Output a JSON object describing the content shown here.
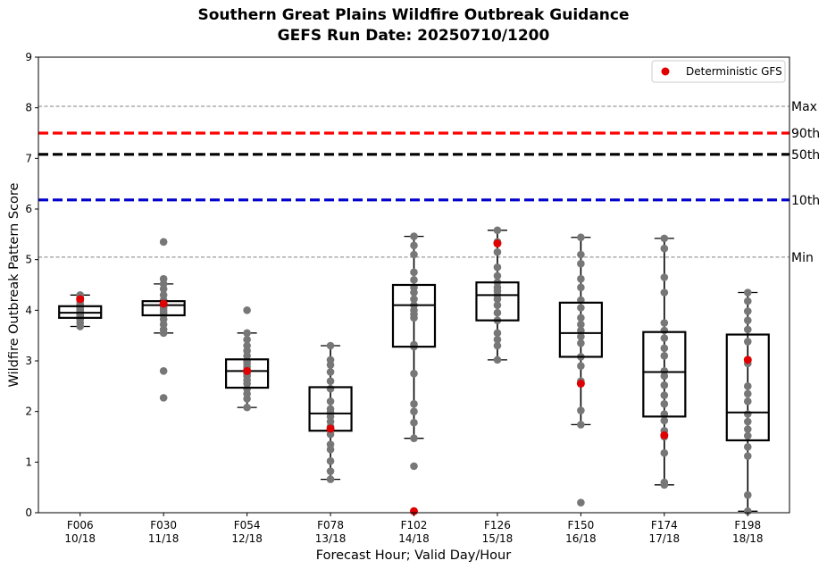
{
  "chart_data": {
    "type": "boxplot",
    "title": "Southern Great Plains Wildfire Outbreak Guidance",
    "subtitle": "GEFS Run Date: 20250710/1200",
    "xlabel": "Forecast Hour; Valid Day/Hour",
    "ylabel": "Wildfire Outbreak Pattern Score",
    "ylim": [
      0,
      9
    ],
    "yticks": [
      "0",
      "1",
      "2",
      "3",
      "4",
      "5",
      "6",
      "7",
      "8",
      "9"
    ],
    "grid": false,
    "legend": {
      "label": "Deterministic GFS",
      "position": "top-right",
      "color": "#e00000"
    },
    "colors": {
      "members": "#777777",
      "deterministic": "#e00000",
      "box": "#000000"
    },
    "reference_lines": [
      {
        "label": "Max",
        "value": 8.03,
        "color": "#808080",
        "style": "dashed-thin"
      },
      {
        "label": "90th",
        "value": 7.5,
        "color": "#ff0000",
        "style": "dashed-thick"
      },
      {
        "label": "50th",
        "value": 7.08,
        "color": "#000000",
        "style": "dashed-thick"
      },
      {
        "label": "10th",
        "value": 6.18,
        "color": "#0000cc",
        "style": "dashed-thick"
      },
      {
        "label": "Min",
        "value": 5.05,
        "color": "#808080",
        "style": "dashed-thin"
      }
    ],
    "categories": [
      {
        "label": "F006",
        "sublabel": "10/18",
        "q1": 3.85,
        "median": 3.95,
        "q3": 4.08,
        "whisker_low": 3.68,
        "whisker_high": 4.3,
        "deterministic": 4.22,
        "members": [
          3.68,
          3.75,
          3.82,
          3.88,
          3.9,
          3.92,
          3.95,
          3.97,
          4.0,
          4.02,
          4.05,
          4.08,
          4.12,
          4.18,
          4.22,
          4.26,
          4.3
        ]
      },
      {
        "label": "F030",
        "sublabel": "11/18",
        "q1": 3.9,
        "median": 4.1,
        "q3": 4.18,
        "whisker_low": 3.55,
        "whisker_high": 4.52,
        "deterministic": 4.13,
        "members": [
          2.27,
          2.8,
          3.55,
          3.62,
          3.72,
          3.82,
          3.9,
          3.95,
          4.0,
          4.05,
          4.1,
          4.15,
          4.2,
          4.3,
          4.42,
          4.52,
          4.62,
          5.35
        ]
      },
      {
        "label": "F054",
        "sublabel": "12/18",
        "q1": 2.47,
        "median": 2.8,
        "q3": 3.03,
        "whisker_low": 2.08,
        "whisker_high": 3.55,
        "deterministic": 2.8,
        "members": [
          2.08,
          2.25,
          2.35,
          2.45,
          2.55,
          2.62,
          2.7,
          2.75,
          2.82,
          2.88,
          2.95,
          3.0,
          3.1,
          3.2,
          3.3,
          3.42,
          3.55,
          4.0
        ]
      },
      {
        "label": "F078",
        "sublabel": "13/18",
        "q1": 1.62,
        "median": 1.96,
        "q3": 2.48,
        "whisker_low": 0.66,
        "whisker_high": 3.3,
        "deterministic": 1.66,
        "members": [
          0.66,
          0.82,
          1.02,
          1.25,
          1.35,
          1.55,
          1.7,
          1.8,
          1.9,
          1.98,
          2.05,
          2.2,
          2.45,
          2.6,
          2.78,
          2.92,
          3.02,
          3.3
        ]
      },
      {
        "label": "F102",
        "sublabel": "14/18",
        "q1": 3.28,
        "median": 4.1,
        "q3": 4.5,
        "whisker_low": 1.47,
        "whisker_high": 5.46,
        "deterministic": 0.03,
        "members": [
          0.92,
          1.47,
          1.78,
          2.0,
          2.15,
          2.75,
          3.28,
          3.32,
          3.85,
          3.92,
          4.0,
          4.1,
          4.22,
          4.35,
          4.45,
          4.6,
          4.75,
          5.1,
          5.28,
          5.46
        ]
      },
      {
        "label": "F126",
        "sublabel": "15/18",
        "q1": 3.8,
        "median": 4.3,
        "q3": 4.55,
        "whisker_low": 3.02,
        "whisker_high": 5.58,
        "deterministic": 5.32,
        "members": [
          3.02,
          3.3,
          3.42,
          3.55,
          3.8,
          3.95,
          4.1,
          4.22,
          4.3,
          4.38,
          4.45,
          4.55,
          4.68,
          4.85,
          5.15,
          5.35,
          5.58
        ]
      },
      {
        "label": "F150",
        "sublabel": "16/18",
        "q1": 3.08,
        "median": 3.55,
        "q3": 4.15,
        "whisker_low": 1.74,
        "whisker_high": 5.44,
        "deterministic": 2.55,
        "members": [
          0.2,
          1.74,
          2.02,
          2.55,
          2.6,
          2.9,
          3.08,
          3.35,
          3.48,
          3.6,
          3.72,
          3.85,
          4.05,
          4.2,
          4.45,
          4.62,
          4.92,
          5.1,
          5.44
        ]
      },
      {
        "label": "F174",
        "sublabel": "17/18",
        "q1": 1.9,
        "median": 2.78,
        "q3": 3.57,
        "whisker_low": 0.55,
        "whisker_high": 5.42,
        "deterministic": 1.53,
        "members": [
          0.55,
          0.6,
          1.18,
          1.5,
          1.62,
          1.82,
          1.95,
          2.15,
          2.32,
          2.52,
          2.7,
          2.8,
          3.1,
          3.25,
          3.45,
          3.6,
          3.75,
          4.35,
          4.65,
          5.22,
          5.42
        ]
      },
      {
        "label": "F198",
        "sublabel": "18/18",
        "q1": 1.43,
        "median": 1.98,
        "q3": 3.52,
        "whisker_low": 0.03,
        "whisker_high": 4.35,
        "deterministic": 3.02,
        "members": [
          0.03,
          0.35,
          1.12,
          1.3,
          1.52,
          1.65,
          1.8,
          1.95,
          2.2,
          2.35,
          2.5,
          2.95,
          3.38,
          3.62,
          3.8,
          3.98,
          4.18,
          4.35
        ]
      }
    ]
  }
}
